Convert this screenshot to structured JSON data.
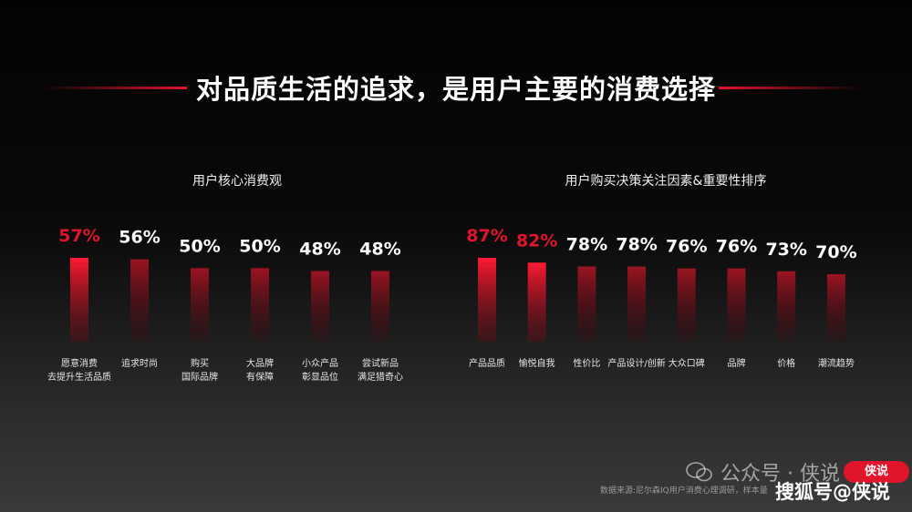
{
  "title": "对品质生活的追求，是用户主要的消费选择",
  "accent_color": "#e0142a",
  "chart_data": [
    {
      "type": "bar",
      "title": "用户核心消费观",
      "categories": [
        "愿意消费\n去提升生活品质",
        "追求时尚",
        "购买\n国际品牌",
        "大品牌\n有保障",
        "小众产品\n彰显品位",
        "尝试新品\n满足猎奇心"
      ],
      "values": [
        57,
        56,
        50,
        50,
        48,
        48
      ],
      "value_labels": [
        "57%",
        "56%",
        "50%",
        "50%",
        "48%",
        "48%"
      ],
      "highlight_count": 1,
      "ylim": [
        0,
        100
      ]
    },
    {
      "type": "bar",
      "title": "用户购买决策关注因素&重要性排序",
      "categories": [
        "产品品质",
        "愉悦自我",
        "性价比",
        "产品设计/创新",
        "大众口碑",
        "品牌",
        "价格",
        "潮流趋势"
      ],
      "values": [
        87,
        82,
        78,
        78,
        76,
        76,
        73,
        70
      ],
      "value_labels": [
        "87%",
        "82%",
        "78%",
        "78%",
        "76%",
        "76%",
        "73%",
        "70%"
      ],
      "highlight_count": 2,
      "ylim": [
        0,
        100
      ]
    }
  ],
  "source": "数据来源:尼尔森IQ用户消费心理调研，样本量",
  "watermark_wechat": "公众号 · 侠说",
  "watermark_sohu": "搜狐号@侠说",
  "badge_text": "侠说",
  "icons": {
    "wechat": "wechat-bubble-icon"
  }
}
